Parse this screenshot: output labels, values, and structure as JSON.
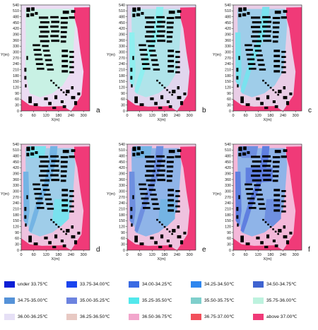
{
  "figure": {
    "panel_letters": [
      "a",
      "b",
      "c",
      "d",
      "e",
      "f"
    ]
  },
  "chart_data": [
    {
      "type": "heatmap",
      "panel": "a",
      "xlabel": "X(m)",
      "ylabel": "Y(m)",
      "xlim": [
        0,
        330
      ],
      "ylim": [
        0,
        540
      ],
      "x_ticks": [
        0,
        60,
        120,
        180,
        240,
        300
      ],
      "y_ticks": [
        0,
        30,
        60,
        90,
        120,
        150,
        180,
        210,
        240,
        270,
        300,
        330,
        360,
        390,
        420,
        450,
        480,
        510,
        540
      ],
      "dominant_bands": [
        "above 37.00℃",
        "36.50-36.75℃",
        "36.00-36.25℃",
        "35.50-35.75℃"
      ],
      "color_levels": {
        "base": 4,
        "inner": 3,
        "blue": 0
      }
    },
    {
      "type": "heatmap",
      "panel": "b",
      "xlabel": "X(m)",
      "ylabel": "Y(m)",
      "xlim": [
        0,
        330
      ],
      "ylim": [
        0,
        540
      ],
      "x_ticks": [
        0,
        60,
        120,
        180,
        240,
        300
      ],
      "y_ticks": [
        0,
        30,
        60,
        90,
        120,
        150,
        180,
        210,
        240,
        270,
        300,
        330,
        360,
        390,
        420,
        450,
        480,
        510,
        540
      ],
      "dominant_bands": [
        "above 37.00℃",
        "36.25-36.50℃",
        "35.50-35.75℃",
        "35.25-35.50℃"
      ],
      "color_levels": {
        "base": 3,
        "inner": 2,
        "blue": 1
      }
    },
    {
      "type": "heatmap",
      "panel": "c",
      "xlabel": "X(m)",
      "ylabel": "Y(m)",
      "xlim": [
        0,
        330
      ],
      "ylim": [
        0,
        540
      ],
      "x_ticks": [
        0,
        60,
        120,
        180,
        240,
        300
      ],
      "y_ticks": [
        0,
        30,
        60,
        90,
        120,
        150,
        180,
        210,
        240,
        270,
        300,
        330,
        360,
        390,
        420,
        450,
        480,
        510,
        540
      ],
      "dominant_bands": [
        "above 37.00℃",
        "35.50-35.75℃",
        "35.25-35.50℃",
        "35.00-35.25℃"
      ],
      "color_levels": {
        "base": 2,
        "inner": 1,
        "blue": 2
      }
    },
    {
      "type": "heatmap",
      "panel": "d",
      "xlabel": "X(m)",
      "ylabel": "Y(m)",
      "xlim": [
        0,
        330
      ],
      "ylim": [
        0,
        540
      ],
      "x_ticks": [
        0,
        60,
        120,
        180,
        240,
        300
      ],
      "y_ticks": [
        0,
        30,
        60,
        90,
        120,
        150,
        180,
        210,
        240,
        270,
        300,
        330,
        360,
        390,
        420,
        450,
        480,
        510,
        540
      ],
      "dominant_bands": [
        "above 37.00℃",
        "35.25-35.50℃",
        "35.00-35.25℃",
        "34.75-35.00℃"
      ],
      "color_levels": {
        "base": 1,
        "inner": 1,
        "blue": 3
      }
    },
    {
      "type": "heatmap",
      "panel": "e",
      "xlabel": "X(m)",
      "ylabel": "Y(m)",
      "xlim": [
        0,
        330
      ],
      "ylim": [
        0,
        540
      ],
      "x_ticks": [
        0,
        60,
        120,
        180,
        240,
        300
      ],
      "y_ticks": [
        0,
        30,
        60,
        90,
        120,
        150,
        180,
        210,
        240,
        270,
        300,
        330,
        360,
        390,
        420,
        450,
        480,
        510,
        540
      ],
      "dominant_bands": [
        "above 37.00℃",
        "35.25-35.50℃",
        "35.00-35.25℃",
        "34.75-35.00℃"
      ],
      "color_levels": {
        "base": 1,
        "inner": 0,
        "blue": 4
      }
    },
    {
      "type": "heatmap",
      "panel": "f",
      "xlabel": "X(m)",
      "ylabel": "Y(m)",
      "xlim": [
        0,
        330
      ],
      "ylim": [
        0,
        540
      ],
      "x_ticks": [
        0,
        60,
        120,
        180,
        240,
        300
      ],
      "y_ticks": [
        0,
        30,
        60,
        90,
        120,
        150,
        180,
        210,
        240,
        270,
        300,
        330,
        360,
        390,
        420,
        450,
        480,
        510,
        540
      ],
      "dominant_bands": [
        "above 37.00℃",
        "35.00-35.25℃",
        "34.75-35.00℃",
        "34.50-34.75℃"
      ],
      "color_levels": {
        "base": 0,
        "inner": 0,
        "blue": 5
      }
    }
  ],
  "legend": {
    "items": [
      {
        "label": "under 33.75℃",
        "color": "#0b1fd6"
      },
      {
        "label": "33.75-34.00℃",
        "color": "#1a44ee"
      },
      {
        "label": "34.00-34.25℃",
        "color": "#3a6ae3"
      },
      {
        "label": "34.25-34.50℃",
        "color": "#2f86ee"
      },
      {
        "label": "34.50-34.75℃",
        "color": "#3f63d0"
      },
      {
        "label": "34.75-35.00℃",
        "color": "#5592d8"
      },
      {
        "label": "35.00-35.25℃",
        "color": "#6c83df"
      },
      {
        "label": "35.25-35.50℃",
        "color": "#52e8ec"
      },
      {
        "label": "35.50-35.75℃",
        "color": "#7fcfcc"
      },
      {
        "label": "35.75-36.00℃",
        "color": "#bdf2de"
      },
      {
        "label": "36.00-36.25℃",
        "color": "#e6e0f6"
      },
      {
        "label": "36.25-36.50℃",
        "color": "#e8c9c3"
      },
      {
        "label": "36.50-36.75℃",
        "color": "#f2a6cc"
      },
      {
        "label": "36.75-37.00℃",
        "color": "#f2505c"
      },
      {
        "label": "above 37.00℃",
        "color": "#f03a78"
      }
    ]
  }
}
